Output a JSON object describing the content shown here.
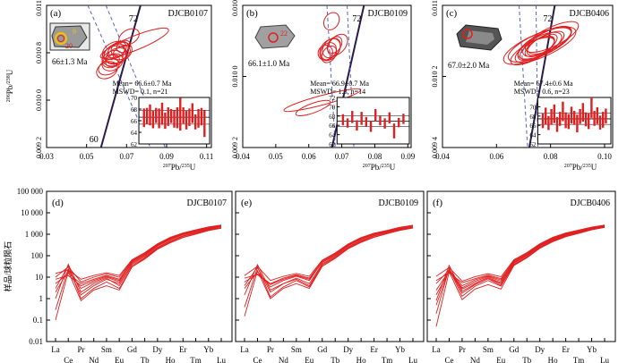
{
  "figure": {
    "ylabel_ree": "样品/球粒陨石"
  },
  "chart_data": [
    {
      "type": "scatter",
      "panel": "(a)",
      "sample": "DJCB0107",
      "xlabel": "²⁰⁷Pb/²³⁵U",
      "ylabel": "²⁰⁶Pb/²³⁸U",
      "xlim": [
        0.03,
        0.12
      ],
      "ylim": [
        0.0092,
        0.011
      ],
      "x_ticks": [
        "0.03",
        "0.05",
        "0.07",
        "0.09",
        "0.11"
      ],
      "y_ticks": [
        "0.009 2",
        "0.010 0",
        "0.010 8",
        "0.011 6"
      ],
      "concordia_labels": [
        "72",
        "60"
      ],
      "grain_age": "66±1.3 Ma",
      "spot_labels": [
        "9",
        "20"
      ],
      "mean_text": "Mean= 66.6±0.7 Ma",
      "mswd_text": "MSWD= 0.1, n=21",
      "ellipse_color": "#e02020",
      "ellipses": [
        {
          "x": 0.066,
          "y": 0.01032,
          "rx": 0.006,
          "ry": 0.0001,
          "angle": -28
        },
        {
          "x": 0.068,
          "y": 0.01042,
          "rx": 0.005,
          "ry": 8e-05,
          "angle": -30
        },
        {
          "x": 0.067,
          "y": 0.01036,
          "rx": 0.007,
          "ry": 0.00012,
          "angle": -25
        },
        {
          "x": 0.072,
          "y": 0.01048,
          "rx": 0.004,
          "ry": 7e-05,
          "angle": -32
        },
        {
          "x": 0.066,
          "y": 0.01028,
          "rx": 0.006,
          "ry": 0.0001,
          "angle": -27
        },
        {
          "x": 0.07,
          "y": 0.01045,
          "rx": 0.005,
          "ry": 9e-05,
          "angle": -29
        },
        {
          "x": 0.064,
          "y": 0.01022,
          "rx": 0.006,
          "ry": 9e-05,
          "angle": -26
        },
        {
          "x": 0.069,
          "y": 0.0104,
          "rx": 0.008,
          "ry": 0.00012,
          "angle": -24
        },
        {
          "x": 0.075,
          "y": 0.0106,
          "rx": 0.006,
          "ry": 9e-05,
          "angle": -30
        },
        {
          "x": 0.066,
          "y": 0.0103,
          "rx": 0.004,
          "ry": 7e-05,
          "angle": -31
        },
        {
          "x": 0.078,
          "y": 0.01052,
          "rx": 0.02,
          "ry": 9e-05,
          "angle": -22
        },
        {
          "x": 0.063,
          "y": 0.01018,
          "rx": 0.006,
          "ry": 0.0001,
          "angle": -27
        },
        {
          "x": 0.071,
          "y": 0.0104,
          "rx": 0.005,
          "ry": 8e-05,
          "angle": -28
        },
        {
          "x": 0.068,
          "y": 0.01036,
          "rx": 0.006,
          "ry": 9e-05,
          "angle": -28
        },
        {
          "x": 0.067,
          "y": 0.01043,
          "rx": 0.007,
          "ry": 0.0001,
          "angle": -27
        }
      ],
      "inset": {
        "ylim": [
          62,
          70
        ],
        "y_ticks": [
          "62",
          "64",
          "66",
          "68",
          "70"
        ],
        "mean": 66.6,
        "ages": [
          66.5,
          66.8,
          67.0,
          66.2,
          66.9,
          66.4,
          67.2,
          66.0,
          66.7,
          66.8,
          66.3,
          66.5,
          67.1,
          66.9,
          66.1,
          66.6,
          67.3,
          65.8,
          66.4,
          66.7,
          65.5
        ],
        "errors": [
          1.6,
          1.4,
          1.8,
          1.5,
          1.3,
          1.7,
          1.9,
          1.4,
          1.6,
          1.2,
          1.5,
          1.8,
          2.8,
          1.4,
          1.6,
          1.5,
          1.7,
          1.3,
          1.6,
          1.5,
          2.3
        ]
      }
    },
    {
      "type": "scatter",
      "panel": "(b)",
      "sample": "DJCB0109",
      "xlabel": "²⁰⁷Pb/²³⁵U",
      "ylabel": "",
      "xlim": [
        0.04,
        0.095
      ],
      "ylim": [
        0.0092,
        0.011
      ],
      "x_ticks": [
        "0.04",
        "0.05",
        "0.06",
        "0.07",
        "0.08",
        "0.09"
      ],
      "y_ticks": [
        "0.009 2",
        "0.010 0",
        "0.010 8"
      ],
      "concordia_labels": [
        "72"
      ],
      "grain_age": "66.1±1.0 Ma",
      "spot_labels": [
        "22"
      ],
      "mean_text": "Mean= 66.9±0.7 Ma",
      "mswd_text": "MSWD= 1.3, n=14",
      "ellipse_color": "#e02020",
      "ellipses": [
        {
          "x": 0.068,
          "y": 0.01042,
          "rx": 0.003,
          "ry": 9e-05,
          "angle": -55
        },
        {
          "x": 0.069,
          "y": 0.01046,
          "rx": 0.0035,
          "ry": 0.0001,
          "angle": -52
        },
        {
          "x": 0.0685,
          "y": 0.01044,
          "rx": 0.004,
          "ry": 0.00011,
          "angle": -50
        },
        {
          "x": 0.07,
          "y": 0.0105,
          "rx": 0.003,
          "ry": 8e-05,
          "angle": -55
        },
        {
          "x": 0.067,
          "y": 0.0104,
          "rx": 0.0025,
          "ry": 9e-05,
          "angle": -56
        },
        {
          "x": 0.069,
          "y": 0.0108,
          "rx": 0.003,
          "ry": 9e-05,
          "angle": -58
        },
        {
          "x": 0.071,
          "y": 0.0105,
          "rx": 0.004,
          "ry": 0.0001,
          "angle": -50
        },
        {
          "x": 0.066,
          "y": 0.0098,
          "rx": 0.013,
          "ry": 6e-05,
          "angle": -15
        },
        {
          "x": 0.063,
          "y": 0.0097,
          "rx": 0.006,
          "ry": 6e-05,
          "angle": -20
        },
        {
          "x": 0.0682,
          "y": 0.01038,
          "rx": 0.003,
          "ry": 8e-05,
          "angle": -54
        }
      ],
      "inset": {
        "ylim": [
          62,
          72
        ],
        "y_ticks": [
          "62",
          "64",
          "66",
          "68",
          "70",
          "72"
        ],
        "mean": 66.9,
        "ages": [
          67.2,
          66.5,
          67.8,
          66.0,
          67.5,
          66.8,
          65.8,
          68.2,
          67.0,
          66.4,
          67.6,
          64.8,
          66.6,
          67.4
        ],
        "errors": [
          1.2,
          1.0,
          1.3,
          1.1,
          1.4,
          1.0,
          1.2,
          1.3,
          1.0,
          1.1,
          1.2,
          1.6,
          1.0,
          1.1
        ]
      }
    },
    {
      "type": "scatter",
      "panel": "(c)",
      "sample": "DJCB0406",
      "xlabel": "²⁰⁷Pb/²³⁵U",
      "ylabel": "",
      "xlim": [
        0.03,
        0.1
      ],
      "ylim": [
        0.0092,
        0.011
      ],
      "x_ticks": [
        "0.04",
        "0.06",
        "0.08",
        "0.10"
      ],
      "y_ticks": [
        "0.009 4",
        "0.010 2",
        "0.011 0"
      ],
      "concordia_labels": [
        "72"
      ],
      "grain_age": "67.0±2.0 Ma",
      "spot_labels": [],
      "mean_text": "Mean= 67.4±0.6 Ma",
      "mswd_text": "MSWD= 0.6, n=23",
      "ellipse_color": "#e02020",
      "ellipses": [
        {
          "x": 0.07,
          "y": 0.01048,
          "rx": 0.01,
          "ry": 0.00012,
          "angle": -28
        },
        {
          "x": 0.072,
          "y": 0.01052,
          "rx": 0.012,
          "ry": 0.00013,
          "angle": -26
        },
        {
          "x": 0.068,
          "y": 0.01044,
          "rx": 0.009,
          "ry": 0.00011,
          "angle": -29
        },
        {
          "x": 0.074,
          "y": 0.01056,
          "rx": 0.01,
          "ry": 0.00012,
          "angle": -27
        },
        {
          "x": 0.07,
          "y": 0.0105,
          "rx": 0.014,
          "ry": 0.00014,
          "angle": -24
        },
        {
          "x": 0.069,
          "y": 0.01046,
          "rx": 0.008,
          "ry": 0.0001,
          "angle": -30
        },
        {
          "x": 0.073,
          "y": 0.01054,
          "rx": 0.011,
          "ry": 0.00012,
          "angle": -27
        },
        {
          "x": 0.071,
          "y": 0.0105,
          "rx": 0.007,
          "ry": 9e-05,
          "angle": -31
        },
        {
          "x": 0.067,
          "y": 0.01042,
          "rx": 0.01,
          "ry": 0.00011,
          "angle": -28
        },
        {
          "x": 0.075,
          "y": 0.0106,
          "rx": 0.012,
          "ry": 0.00012,
          "angle": -26
        },
        {
          "x": 0.07,
          "y": 0.01049,
          "rx": 0.016,
          "ry": 0.00015,
          "angle": -23
        },
        {
          "x": 0.072,
          "y": 0.01051,
          "rx": 0.009,
          "ry": 0.0001,
          "angle": -29
        }
      ],
      "inset": {
        "ylim": [
          62,
          72
        ],
        "y_ticks": [
          "62",
          "64",
          "66",
          "68",
          "70"
        ],
        "mean": 67.4,
        "ages": [
          67.0,
          68.0,
          66.5,
          67.8,
          68.5,
          66.2,
          67.4,
          69.0,
          67.1,
          66.8,
          68.2,
          67.6,
          66.4,
          67.9,
          68.8,
          67.3,
          66.9,
          69.8,
          67.5,
          68.1,
          66.6,
          67.2,
          68.0
        ],
        "errors": [
          1.6,
          1.8,
          1.5,
          1.7,
          2.0,
          1.6,
          1.5,
          2.1,
          1.7,
          1.6,
          1.8,
          1.5,
          1.9,
          1.6,
          2.0,
          1.5,
          1.7,
          2.2,
          1.6,
          1.8,
          1.5,
          1.7,
          1.6
        ]
      }
    },
    {
      "type": "line",
      "panel": "(d)",
      "sample": "DJCB0107",
      "categories": [
        "La",
        "Ce",
        "Pr",
        "Nd",
        "Sm",
        "Eu",
        "Gd",
        "Tb",
        "Dy",
        "Ho",
        "Er",
        "Tm",
        "Yb",
        "Lu"
      ],
      "scale": "log",
      "ylim": [
        0.01,
        100000
      ],
      "y_ticks": [
        "0.01",
        "0.1",
        "1",
        "10",
        "100",
        "1 000",
        "10 000",
        "100 000"
      ],
      "line_color": "#e02020",
      "series": [
        {
          "values": [
            0.1,
            18,
            0.8,
            2.5,
            4,
            2.5,
            30,
            70,
            200,
            400,
            700,
            1000,
            1500,
            2000
          ]
        },
        {
          "values": [
            0.3,
            25,
            1.5,
            4,
            8,
            5,
            40,
            90,
            250,
            500,
            850,
            1200,
            1700,
            2100
          ]
        },
        {
          "values": [
            2,
            20,
            3,
            6,
            10,
            6,
            50,
            110,
            300,
            600,
            1000,
            1400,
            1900,
            2400
          ]
        },
        {
          "values": [
            5,
            15,
            5,
            8,
            12,
            8,
            55,
            120,
            320,
            640,
            1050,
            1450,
            2000,
            2500
          ]
        },
        {
          "values": [
            10,
            30,
            6,
            10,
            14,
            10,
            60,
            130,
            340,
            680,
            1100,
            1500,
            2100,
            2600
          ]
        },
        {
          "values": [
            1,
            40,
            2,
            5,
            9,
            4,
            35,
            80,
            230,
            460,
            800,
            1150,
            1600,
            2000
          ]
        },
        {
          "values": [
            8,
            12,
            4,
            7,
            11,
            7,
            45,
            100,
            280,
            560,
            950,
            1300,
            1800,
            2300
          ]
        },
        {
          "values": [
            15,
            22,
            8,
            12,
            16,
            12,
            65,
            140,
            360,
            720,
            1150,
            1600,
            2200,
            2700
          ]
        },
        {
          "values": [
            3,
            35,
            1,
            3,
            6,
            3,
            30,
            75,
            210,
            420,
            720,
            1050,
            1500,
            1900
          ]
        }
      ]
    },
    {
      "type": "line",
      "panel": "(e)",
      "sample": "DJCB0109",
      "categories": [
        "La",
        "Ce",
        "Pr",
        "Nd",
        "Sm",
        "Eu",
        "Gd",
        "Tb",
        "Dy",
        "Ho",
        "Er",
        "Tm",
        "Yb",
        "Lu"
      ],
      "scale": "log",
      "ylim": [
        0.01,
        100000
      ],
      "line_color": "#e02020",
      "series": [
        {
          "values": [
            0.15,
            20,
            1,
            3,
            5,
            3,
            32,
            75,
            210,
            420,
            720,
            1050,
            1550,
            2000
          ]
        },
        {
          "values": [
            0.4,
            28,
            2,
            5,
            9,
            5,
            42,
            95,
            260,
            520,
            880,
            1250,
            1750,
            2150
          ]
        },
        {
          "values": [
            3,
            18,
            3.5,
            7,
            11,
            7,
            52,
            115,
            310,
            620,
            1020,
            1420,
            1950,
            2450
          ]
        },
        {
          "values": [
            6,
            14,
            5,
            9,
            13,
            9,
            58,
            125,
            330,
            660,
            1080,
            1480,
            2050,
            2550
          ]
        },
        {
          "values": [
            12,
            32,
            7,
            11,
            15,
            11,
            62,
            135,
            350,
            700,
            1120,
            1520,
            2120,
            2620
          ]
        },
        {
          "values": [
            1.5,
            38,
            2.5,
            5,
            8,
            4,
            38,
            85,
            240,
            480,
            820,
            1180,
            1650,
            2050
          ]
        },
        {
          "values": [
            9,
            13,
            4.5,
            8,
            12,
            8,
            48,
            105,
            290,
            580,
            970,
            1330,
            1850,
            2350
          ]
        },
        {
          "values": [
            4,
            30,
            1.2,
            3.5,
            7,
            3.5,
            33,
            78,
            220,
            440,
            740,
            1080,
            1520,
            1950
          ]
        }
      ]
    },
    {
      "type": "line",
      "panel": "(f)",
      "sample": "DJCB0406",
      "categories": [
        "La",
        "Ce",
        "Pr",
        "Nd",
        "Sm",
        "Eu",
        "Gd",
        "Tb",
        "Dy",
        "Ho",
        "Er",
        "Tm",
        "Yb",
        "Lu"
      ],
      "scale": "log",
      "ylim": [
        0.01,
        100000
      ],
      "line_color": "#e02020",
      "series": [
        {
          "values": [
            0.05,
            18,
            0.9,
            2.8,
            4.5,
            2.8,
            35,
            80,
            220,
            450,
            760,
            1100,
            1600,
            2100
          ]
        },
        {
          "values": [
            0.2,
            26,
            1.8,
            4.5,
            8.5,
            5,
            45,
            100,
            270,
            540,
            900,
            1280,
            1800,
            2250
          ]
        },
        {
          "values": [
            2.5,
            20,
            3.2,
            6.5,
            10.5,
            6.5,
            55,
            120,
            320,
            640,
            1060,
            1460,
            2000,
            2500
          ]
        },
        {
          "values": [
            7,
            16,
            5.5,
            8.5,
            12.5,
            8.5,
            60,
            130,
            340,
            680,
            1100,
            1500,
            2080,
            2600
          ]
        },
        {
          "values": [
            11,
            28,
            6.5,
            10.5,
            14.5,
            10.5,
            65,
            140,
            360,
            720,
            1150,
            1560,
            2150,
            2700
          ]
        },
        {
          "values": [
            0.8,
            35,
            2.2,
            4.8,
            8.5,
            4.2,
            40,
            90,
            250,
            500,
            840,
            1200,
            1700,
            2150
          ]
        },
        {
          "values": [
            5,
            22,
            4,
            7.5,
            11.5,
            7.5,
            50,
            110,
            300,
            600,
            1000,
            1380,
            1900,
            2400
          ]
        },
        {
          "values": [
            0.5,
            24,
            1.3,
            3.8,
            7,
            3.8,
            38,
            85,
            235,
            470,
            790,
            1140,
            1640,
            2100
          ]
        },
        {
          "values": [
            1.5,
            19,
            2.8,
            5.5,
            9.5,
            5.5,
            47,
            105,
            285,
            570,
            960,
            1340,
            1860,
            2360
          ]
        }
      ]
    }
  ]
}
